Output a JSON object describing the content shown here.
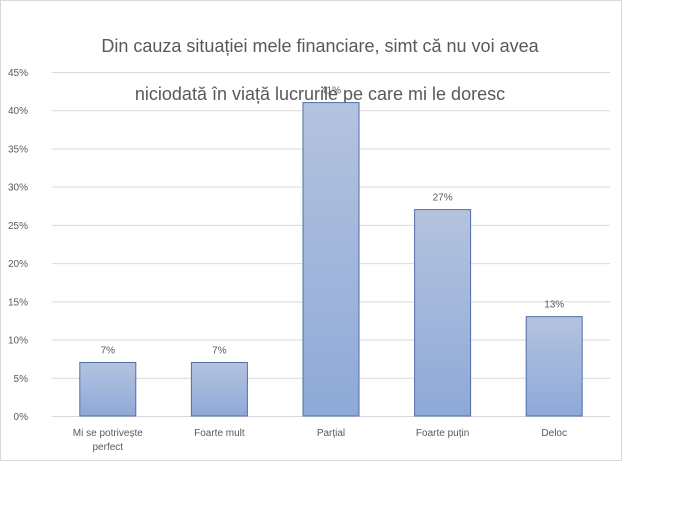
{
  "chart_data": {
    "type": "bar",
    "title": "Din cauza situației  mele financiare, simt că nu voi avea niciodată  în viață lucrurile pe care mi le doresc",
    "title_lines": [
      "Din cauza situației  mele financiare, simt că nu voi avea",
      "niciodată  în viață lucrurile pe care mi le doresc"
    ],
    "categories": [
      [
        "Mi se potrivește",
        "perfect"
      ],
      [
        "Foarte mult"
      ],
      [
        "Parțial"
      ],
      [
        "Foarte puțin"
      ],
      [
        "Deloc"
      ]
    ],
    "values": [
      7,
      7,
      41,
      27,
      13
    ],
    "data_labels": [
      "7%",
      "7%",
      "41%",
      "27%",
      "13%"
    ],
    "y_ticks": [
      "0%",
      "5%",
      "10%",
      "15%",
      "20%",
      "25%",
      "30%",
      "35%",
      "40%",
      "45%"
    ],
    "ylim": [
      0,
      45
    ],
    "xlabel": "",
    "ylabel": "",
    "grid": true,
    "legend": "none",
    "colors": {
      "bar_top": "#b4c3de",
      "bar_bottom": "#8ea9d8",
      "bar_border": "#4f6ea8",
      "grid": "#d9d9d9",
      "text": "#595959"
    }
  }
}
